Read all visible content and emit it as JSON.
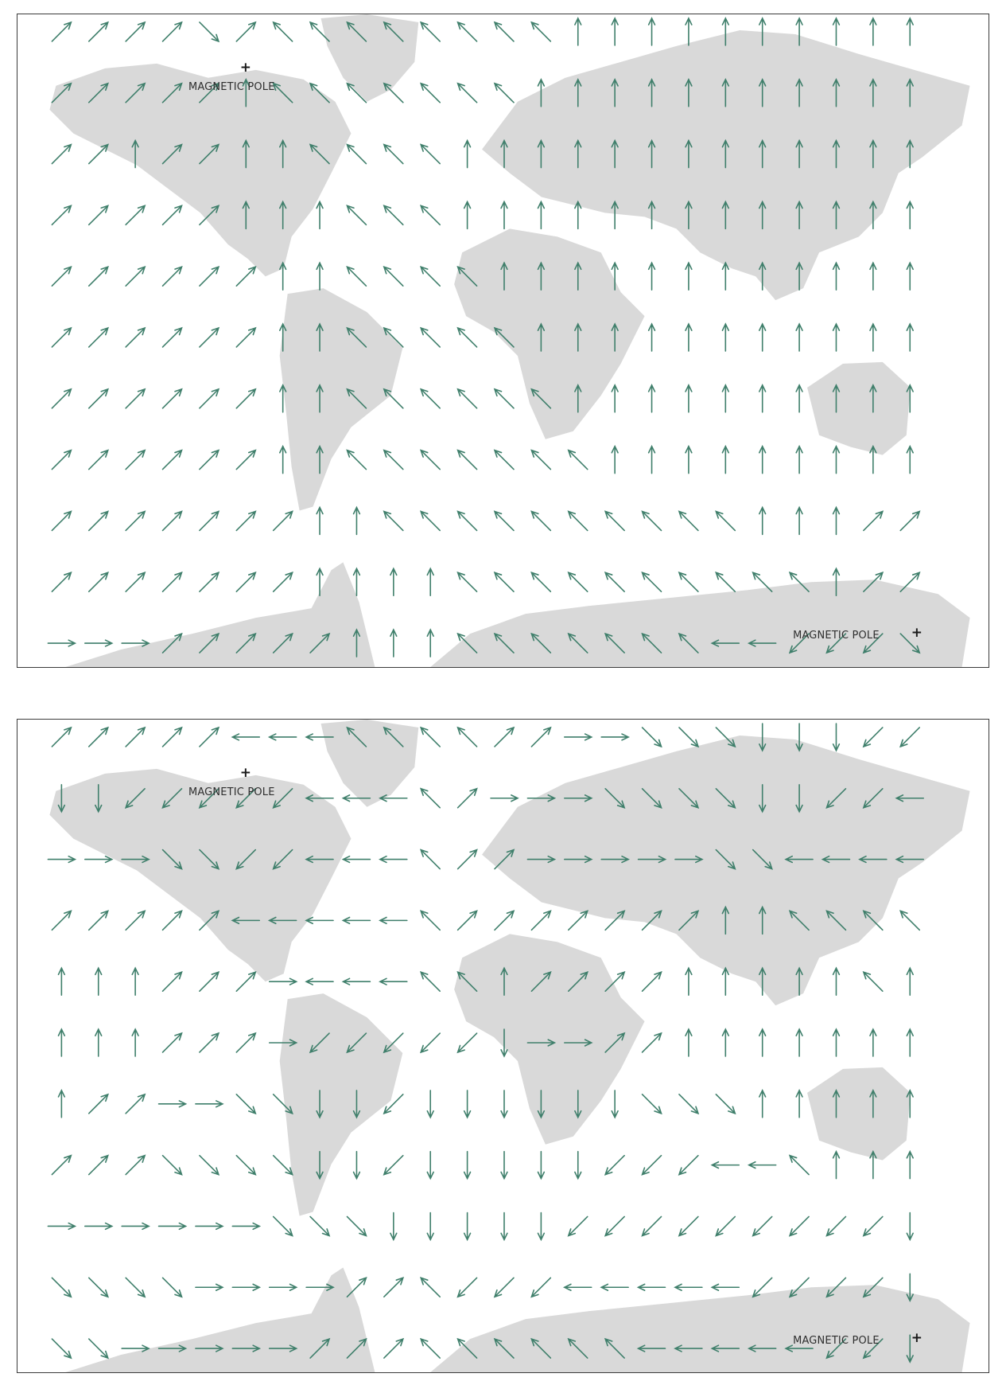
{
  "maps": [
    {
      "id": "upper-map",
      "north_pole_label": "MAGNETIC POLE",
      "south_pole_label": "MAGNETIC POLE",
      "pole_marker": "+",
      "arrow_color": "#3f7f6b",
      "land_color": "#d9d9d9",
      "arrows": [
        "↗↗↗↗↘↗↖↖↖↖↖↖↖↖↑↑↑↑↑↑↑↑↑↑",
        "↗↗↗↗↗↑↖↖↖↖↖↖↖↑↑↑↑↑↑↑↑↑↑↑",
        "↗↗↑↗↗↑↑↖↖↖↖↑↑↑↑↑↑↑↑↑↑↑↑↑",
        "↗↗↗↗↗↑↑↑↖↖↖↑↑↑↑↑↑↑↑↑↑↑↑↑",
        "↗↗↗↗↗↗↑↑↖↖↖↖↑↑↑↑↑↑↑↑↑↑↑↑",
        "↗↗↗↗↗↗↑↑↖↖↖↖↖↑↑↑↑↑↑↑↑↑↑↑",
        "↗↗↗↗↗↗↑↑↖↖↖↖↖↖↑↑↑↑↑↑↑↑↑↑",
        "↗↗↗↗↗↗↑↑↖↖↖↖↖↖↖↑↑↑↑↑↑↑↑↑",
        "↗↗↗↗↗↗↗↑↑↖↖↖↖↖↖↖↖↖↖↑↑↑↗↗",
        "↗↗↗↗↗↗↗↑↑↑↑↖↖↖↖↖↖↖↖↖↖↑↗↗",
        "→→→↗↗↗↗↗↑↑↑↖↖↖↖↖↖↖←←↙↙↙↘"
      ]
    },
    {
      "id": "lower-map",
      "north_pole_label": "MAGNETIC POLE",
      "south_pole_label": "MAGNETIC POLE",
      "pole_marker": "+",
      "arrow_color": "#3f7f6b",
      "land_color": "#d9d9d9",
      "arrows": [
        "↗↗↗↗↗←←←↖↖↖↖↗↗→→↘↘↘↓↓↓↙↙",
        "↓↓↙↙↙↙↙←←←↖↗→→→↘↘↘↘↓↓↙↙←",
        "→→→↘↘↙↙←←←↖↗↗→→→→→↘↘←←←←",
        "↗↗↗↗↗←←←←←↖↗↗↗↗↗↗↗↑↑↖↖↖↖",
        "↑↑↑↗↗↗→←←←↖↖↑↗↗↗↗↑↑↑↑↑↖↑",
        "↑↑↑↗↗↗→↙↙↙↙↙↓→→↗↗↑↑↑↑↑↑↑",
        "↑↗↗→→↘↘↓↓↙↓↓↓↓↓↓↘↘↘↑↑↑↑↑",
        "↗↗↗↘↘↘↘↓↓↙↓↓↓↓↓↙↙↙←←↖↑↑↑",
        "→→→→→→↘↘↘↓↓↓↓↓↙↙↙↙↙↙↙↙↙↓",
        "↘↘↘↘→→→→↗↗↖↙↙↙←←←←←↙↙↙↙↓",
        "↘↘→→→→→↗↗↗↖↖↖↖↖↖←←←←←↙↙↓"
      ]
    }
  ]
}
